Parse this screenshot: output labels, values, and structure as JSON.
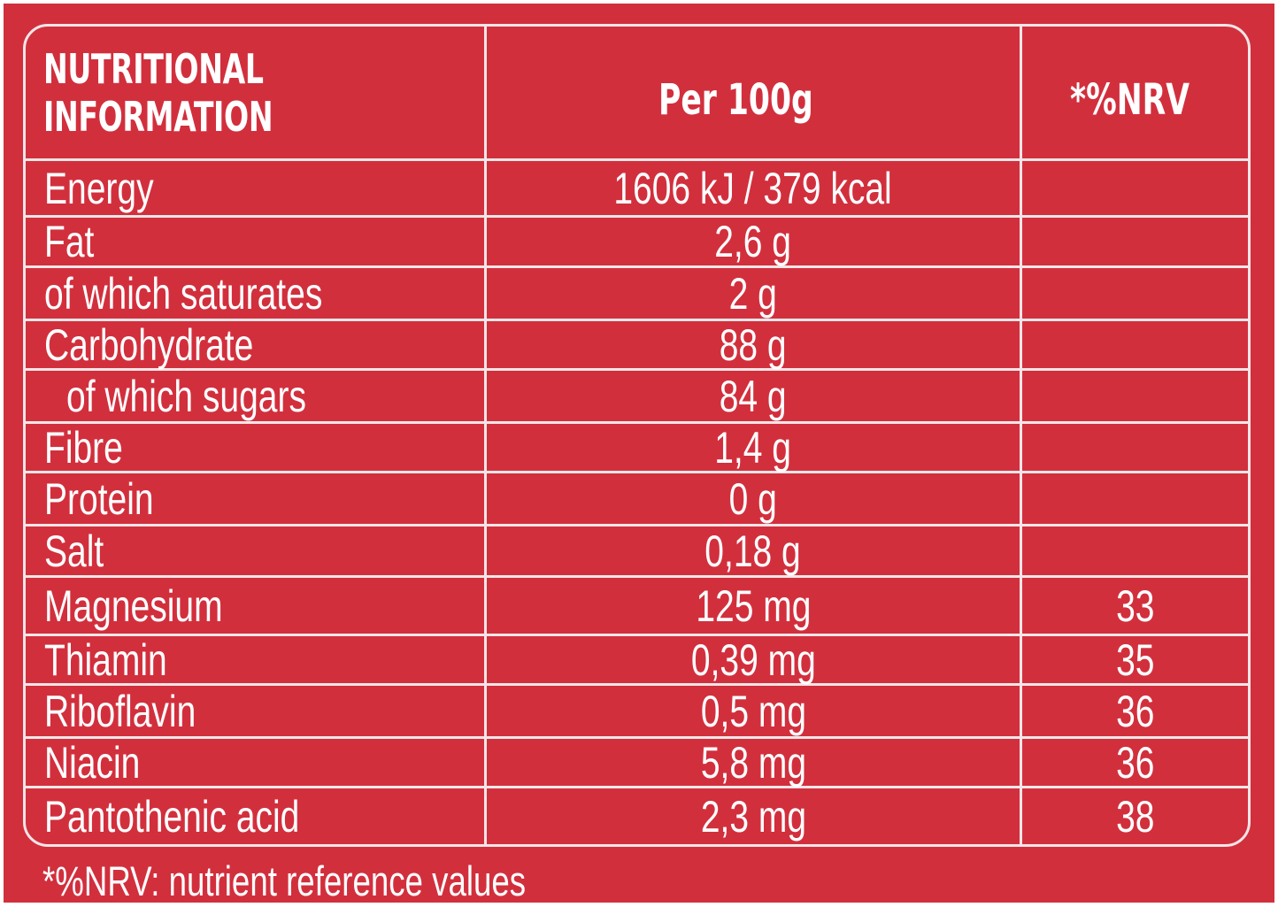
{
  "table": {
    "header": {
      "title_line1": "NUTRITIONAL",
      "title_line2": "INFORMATION",
      "per": "Per 100g",
      "nrv": "*%NRV"
    },
    "rows": [
      {
        "name": "Energy",
        "value": "1606 kJ / 379 kcal",
        "nrv": ""
      },
      {
        "name": "Fat",
        "value": "2,6 g",
        "nrv": ""
      },
      {
        "name": "of which saturates",
        "value": "2 g",
        "nrv": ""
      },
      {
        "name": "Carbohydrate",
        "value": "88 g",
        "nrv": ""
      },
      {
        "name": "of which sugars",
        "value": "84 g",
        "nrv": ""
      },
      {
        "name": "Fibre",
        "value": "1,4 g",
        "nrv": ""
      },
      {
        "name": "Protein",
        "value": "0 g",
        "nrv": ""
      },
      {
        "name": "Salt",
        "value": "0,18 g",
        "nrv": ""
      },
      {
        "name": "Magnesium",
        "value": "125 mg",
        "nrv": "33"
      },
      {
        "name": "Thiamin",
        "value": "0,39 mg",
        "nrv": "35"
      },
      {
        "name": "Riboflavin",
        "value": "0,5 mg",
        "nrv": "36"
      },
      {
        "name": "Niacin",
        "value": "5,8 mg",
        "nrv": "36"
      },
      {
        "name": "Pantothenic acid",
        "value": "2,3 mg",
        "nrv": "38"
      }
    ]
  },
  "footnote": "*%NRV: nutrient reference values",
  "colors": {
    "background": "#d22f3d",
    "lines": "#f3e6e8",
    "text": "#ffffff"
  }
}
